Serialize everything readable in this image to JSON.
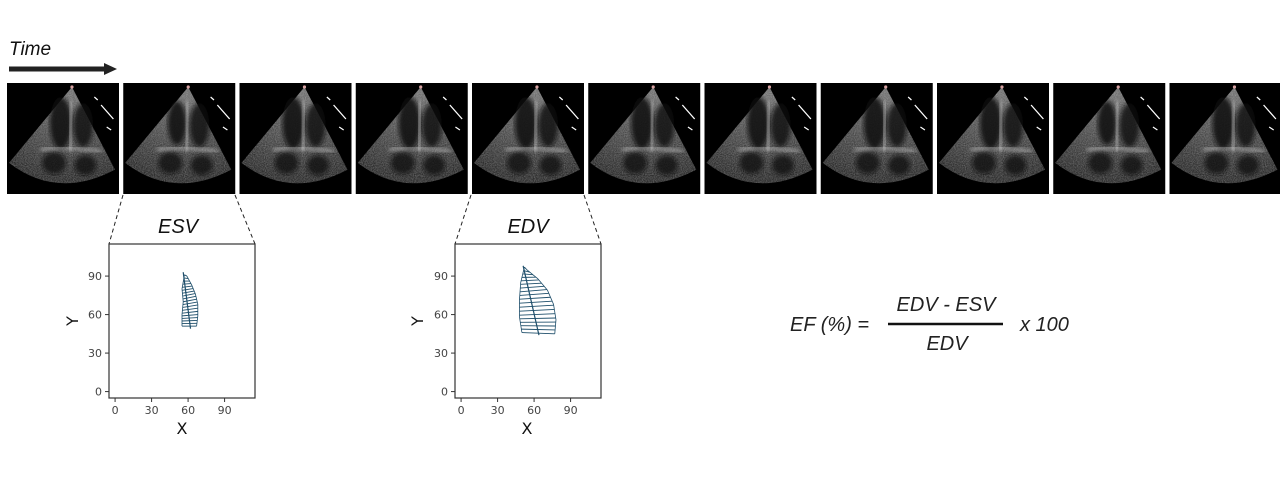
{
  "header": {
    "time_label": "Time"
  },
  "frames": {
    "count": 11,
    "icons": [
      "echo-frame-image"
    ]
  },
  "panels": [
    {
      "title": "ESV",
      "xlabel": "X",
      "ylabel": "Y",
      "xticks": [
        "0",
        "30",
        "60",
        "90"
      ],
      "yticks": [
        "0",
        "30",
        "60",
        "90"
      ],
      "source_frame": 2
    },
    {
      "title": "EDV",
      "xlabel": "X",
      "ylabel": "Y",
      "xticks": [
        "0",
        "30",
        "60",
        "90"
      ],
      "yticks": [
        "0",
        "30",
        "60",
        "90"
      ],
      "source_frame": 5
    }
  ],
  "chart_data": [
    {
      "type": "scatter",
      "title": "ESV",
      "xlabel": "X",
      "ylabel": "Y",
      "xlim": [
        -5,
        115
      ],
      "ylim": [
        -5,
        115
      ],
      "grid": false,
      "contour": {
        "axis_top": [
          56,
          93
        ],
        "axis_bottom": [
          62,
          49
        ],
        "left_edge": [
          [
            57,
            91
          ],
          [
            55,
            80
          ],
          [
            56,
            70
          ],
          [
            55,
            60
          ],
          [
            55,
            51
          ]
        ],
        "right_edge": [
          [
            59,
            90
          ],
          [
            63,
            83
          ],
          [
            66,
            76
          ],
          [
            68,
            68
          ],
          [
            68,
            59
          ],
          [
            67,
            51
          ]
        ]
      }
    },
    {
      "type": "scatter",
      "title": "EDV",
      "xlabel": "X",
      "ylabel": "Y",
      "xlim": [
        -5,
        115
      ],
      "ylim": [
        -5,
        115
      ],
      "grid": false,
      "contour": {
        "axis_top": [
          51,
          98
        ],
        "axis_bottom": [
          64,
          44
        ],
        "left_edge": [
          [
            52,
            97
          ],
          [
            49,
            85
          ],
          [
            48,
            72
          ],
          [
            48,
            58
          ],
          [
            50,
            46
          ]
        ],
        "right_edge": [
          [
            54,
            95
          ],
          [
            63,
            88
          ],
          [
            71,
            79
          ],
          [
            76,
            68
          ],
          [
            78,
            56
          ],
          [
            77,
            45
          ]
        ]
      }
    }
  ],
  "equation": {
    "lhs": "EF (%) =",
    "numerator": "EDV - ESV",
    "denominator": "EDV",
    "multiplier": "x 100"
  },
  "colors": {
    "arrow": "#222222",
    "frame_bg": "#000000",
    "contour": "#1f4f6b",
    "axis": "#333333",
    "text": "#222222"
  }
}
